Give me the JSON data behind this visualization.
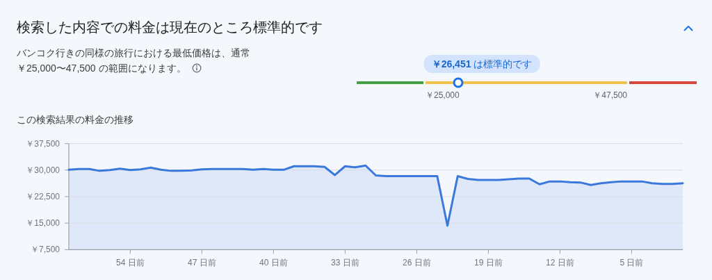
{
  "chart_data": [
    {
      "type": "other",
      "title": "検索した内容での料金は現在のところ標準的です",
      "subtitle": "バンコク行きの同様の旅行における最低価格は、通常￥25,000〜47,500 の範囲になります。",
      "annotations": [
        "￥26,451 は標準的です",
        "￥25,000",
        "￥47,500"
      ]
    },
    {
      "type": "area",
      "title": "この検索結果の料金の推移",
      "x": [
        60,
        59,
        58,
        57,
        56,
        55,
        54,
        53,
        52,
        51,
        50,
        49,
        48,
        47,
        46,
        45,
        44,
        43,
        42,
        41,
        40,
        39,
        38,
        37,
        36,
        35,
        34,
        33,
        32,
        31,
        30,
        29,
        28,
        27,
        26,
        25,
        24,
        23,
        22,
        21,
        20,
        19,
        18,
        17,
        16,
        15,
        14,
        13,
        12,
        11,
        10,
        9,
        8,
        7,
        6,
        5,
        4,
        3,
        2,
        1,
        0
      ],
      "series": [
        {
          "color": "#3a78dc",
          "values": [
            30100,
            30300,
            30300,
            29800,
            30000,
            30400,
            30000,
            30200,
            30700,
            30100,
            29800,
            29800,
            29900,
            30200,
            30300,
            30300,
            30300,
            30300,
            30100,
            30300,
            30100,
            30100,
            31100,
            31100,
            31100,
            30900,
            28600,
            31100,
            30800,
            31300,
            28500,
            28300,
            28300,
            28300,
            28300,
            28300,
            28300,
            14300,
            28300,
            27500,
            27200,
            27200,
            27200,
            27400,
            27600,
            27600,
            26000,
            26800,
            26800,
            26600,
            26500,
            25800,
            26300,
            26600,
            26800,
            26800,
            26800,
            26300,
            26100,
            26100,
            26300
          ]
        }
      ],
      "xlim": [
        60,
        0
      ],
      "xticks": [
        {
          "value": 54,
          "label": "54 日前"
        },
        {
          "value": 47,
          "label": "47 日前"
        },
        {
          "value": 40,
          "label": "40 日前"
        },
        {
          "value": 33,
          "label": "33 日前"
        },
        {
          "value": 26,
          "label": "26 日前"
        },
        {
          "value": 19,
          "label": "19 日前"
        },
        {
          "value": 12,
          "label": "12 日前"
        },
        {
          "value": 5,
          "label": "5 日前"
        }
      ],
      "ylim": [
        7500,
        37500
      ],
      "yticks": [
        {
          "value": 7500,
          "label": "￥7,500"
        },
        {
          "value": 15000,
          "label": "￥15,000"
        },
        {
          "value": 22500,
          "label": "￥22,500"
        },
        {
          "value": 30000,
          "label": "￥30,000"
        },
        {
          "value": 37500,
          "label": "￥37,500"
        }
      ],
      "grid": "y"
    }
  ]
}
